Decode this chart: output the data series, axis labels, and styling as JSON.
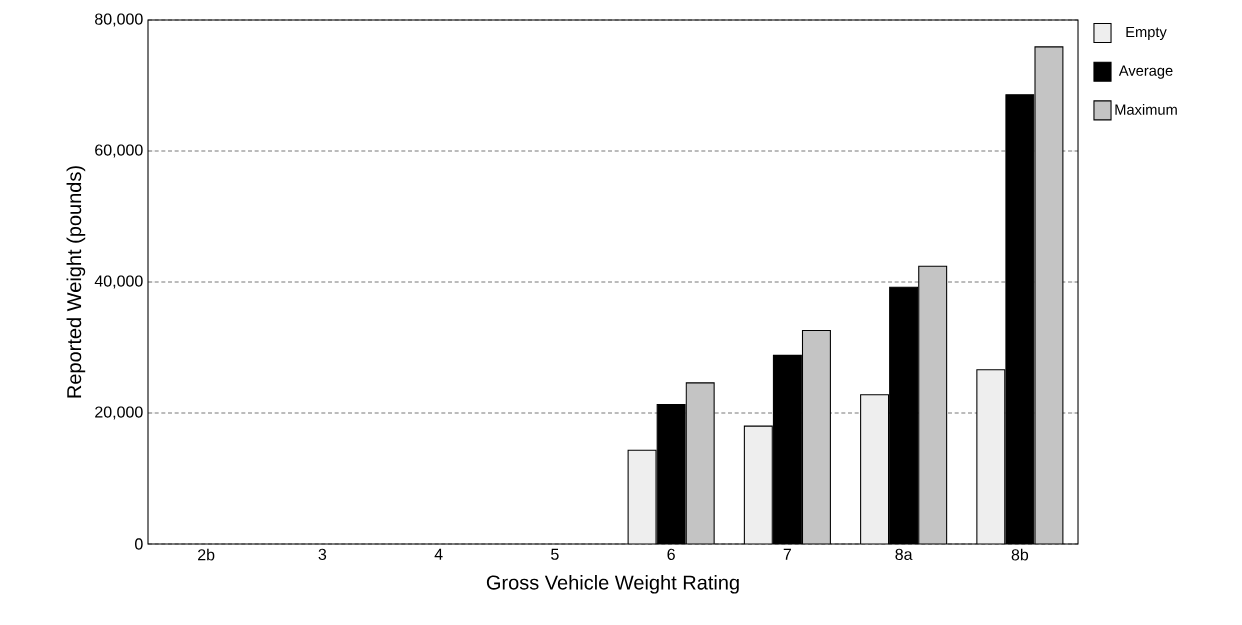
{
  "chart_data": {
    "type": "bar",
    "xlabel": "Gross Vehicle Weight Rating",
    "ylabel": "Reported Weight (pounds)",
    "categories": [
      "2b",
      "3",
      "4",
      "5",
      "6",
      "7",
      "8a",
      "8b"
    ],
    "series": [
      {
        "name": "Empty",
        "color": "#eeeeee",
        "values": [
          null,
          null,
          null,
          null,
          14300,
          18000,
          22800,
          26600
        ]
      },
      {
        "name": "Average",
        "color": "#000000",
        "values": [
          null,
          null,
          null,
          null,
          21300,
          28800,
          39200,
          68600
        ]
      },
      {
        "name": "Maximum",
        "color": "#c4c4c4",
        "values": [
          null,
          null,
          null,
          null,
          24600,
          32600,
          42400,
          75900
        ]
      }
    ],
    "ylim": [
      0,
      80000
    ],
    "yticks": [
      0,
      {
        "value": 20000,
        "label": "20,000"
      },
      {
        "value": 40000,
        "label": "40,000"
      },
      {
        "value": 60000,
        "label": "60,000"
      },
      {
        "value": 80000,
        "label": "80,000"
      }
    ],
    "grid": "y",
    "legend": "top right"
  }
}
